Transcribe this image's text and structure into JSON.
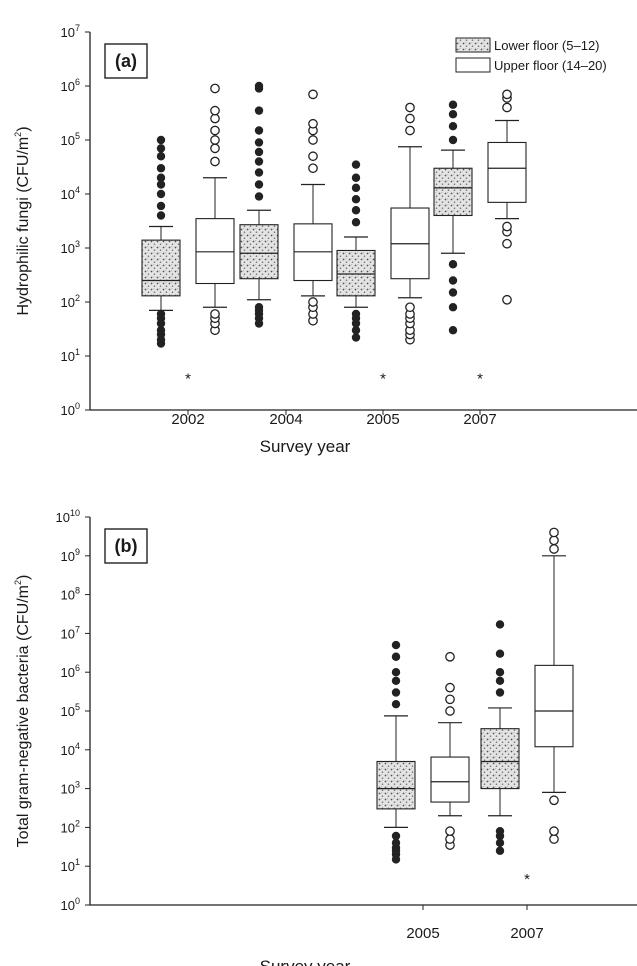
{
  "chart_data": [
    {
      "type": "box",
      "panel_label": "(a)",
      "ylabel_main": "Hydrophilic fungi (CFU/m",
      "ylabel_sup": "2",
      "ylabel_end": ")",
      "xlabel": "Survey year",
      "yscale": "log",
      "ylim_exp": [
        0,
        7
      ],
      "ytick_exps": [
        0,
        1,
        2,
        3,
        4,
        5,
        6,
        7
      ],
      "categories": [
        "2002",
        "2004",
        "2005",
        "2007"
      ],
      "legend": [
        {
          "name": "Lower floor (5–12)",
          "style": "stippled"
        },
        {
          "name": "Upper floor (14–20)",
          "style": "open"
        }
      ],
      "series": [
        {
          "name": "Lower floor (5–12)",
          "boxes": [
            {
              "category": "2002",
              "whisker_low": 70,
              "q1": 130,
              "median": 250,
              "q3": 1400,
              "whisker_high": 2500,
              "outliers": [
                17,
                20,
                25,
                30,
                40,
                50,
                60,
                4000,
                6000,
                10000,
                15000,
                20000,
                30000,
                50000,
                70000,
                100000
              ]
            },
            {
              "category": "2004",
              "whisker_low": 110,
              "q1": 270,
              "median": 800,
              "q3": 2700,
              "whisker_high": 5000,
              "outliers": [
                40,
                50,
                60,
                70,
                80,
                9000,
                15000,
                25000,
                40000,
                60000,
                90000,
                150000,
                350000,
                900000,
                1000000
              ]
            },
            {
              "category": "2005",
              "whisker_low": 80,
              "q1": 130,
              "median": 330,
              "q3": 900,
              "whisker_high": 1600,
              "outliers": [
                22,
                30,
                40,
                50,
                60,
                3000,
                5000,
                8000,
                13000,
                20000,
                35000
              ]
            },
            {
              "category": "2007",
              "whisker_low": 800,
              "q1": 4000,
              "median": 13000,
              "q3": 30000,
              "whisker_high": 65000,
              "outliers": [
                30,
                80,
                150,
                250,
                500,
                100000,
                180000,
                300000,
                450000
              ]
            }
          ]
        },
        {
          "name": "Upper floor (14–20)",
          "boxes": [
            {
              "category": "2002",
              "whisker_low": 80,
              "q1": 220,
              "median": 850,
              "q3": 3500,
              "whisker_high": 20000,
              "outliers": [
                30,
                40,
                50,
                60,
                40000,
                70000,
                100000,
                150000,
                250000,
                350000,
                900000
              ]
            },
            {
              "category": "2004",
              "whisker_low": 130,
              "q1": 250,
              "median": 850,
              "q3": 2800,
              "whisker_high": 15000,
              "outliers": [
                45,
                60,
                80,
                100,
                30000,
                50000,
                100000,
                150000,
                200000,
                700000
              ]
            },
            {
              "category": "2005",
              "whisker_low": 120,
              "q1": 270,
              "median": 1200,
              "q3": 5500,
              "whisker_high": 75000,
              "outliers": [
                20,
                25,
                30,
                40,
                50,
                60,
                80,
                150000,
                250000,
                400000
              ]
            },
            {
              "category": "2007",
              "whisker_low": 3500,
              "q1": 7000,
              "median": 30000,
              "q3": 90000,
              "whisker_high": 230000,
              "outliers": [
                110,
                1200,
                2000,
                2500,
                400000,
                600000,
                700000
              ]
            }
          ]
        }
      ],
      "annotations": [
        {
          "text": "*",
          "category": "2002",
          "y": 4
        },
        {
          "text": "*",
          "category": "2005",
          "y": 4
        },
        {
          "text": "*",
          "category": "2007",
          "y": 4
        }
      ]
    },
    {
      "type": "box",
      "panel_label": "(b)",
      "ylabel_main": "Total gram-negative bacteria (CFU/m",
      "ylabel_sup": "2",
      "ylabel_end": ")",
      "xlabel": "Survey year",
      "yscale": "log",
      "ylim_exp": [
        0,
        10
      ],
      "ytick_exps": [
        0,
        1,
        2,
        3,
        4,
        5,
        6,
        7,
        8,
        9,
        10
      ],
      "categories": [
        "2005",
        "2007"
      ],
      "series": [
        {
          "name": "Lower floor (5–12)",
          "boxes": [
            {
              "category": "2005",
              "whisker_low": 100,
              "q1": 300,
              "median": 1000,
              "q3": 5000,
              "whisker_high": 75000,
              "outliers": [
                15,
                20,
                25,
                30,
                40,
                60,
                150000,
                300000,
                600000,
                1000000,
                2500000,
                5000000
              ]
            },
            {
              "category": "2007",
              "whisker_low": 200,
              "q1": 1000,
              "median": 5000,
              "q3": 35000,
              "whisker_high": 120000,
              "outliers": [
                25,
                40,
                60,
                80,
                300000,
                600000,
                1000000,
                3000000,
                17000000
              ]
            }
          ]
        },
        {
          "name": "Upper floor (14–20)",
          "boxes": [
            {
              "category": "2005",
              "whisker_low": 200,
              "q1": 450,
              "median": 1500,
              "q3": 6500,
              "whisker_high": 50000,
              "outliers": [
                35,
                50,
                80,
                100000,
                200000,
                400000,
                2500000
              ]
            },
            {
              "category": "2007",
              "whisker_low": 800,
              "q1": 12000,
              "median": 100000,
              "q3": 1500000,
              "whisker_high": 1000000000,
              "outliers": [
                50,
                80,
                500,
                1500000000,
                2500000000,
                4000000000
              ]
            }
          ]
        }
      ],
      "annotations": [
        {
          "text": "*",
          "category": "2007",
          "y": 5
        }
      ]
    }
  ]
}
